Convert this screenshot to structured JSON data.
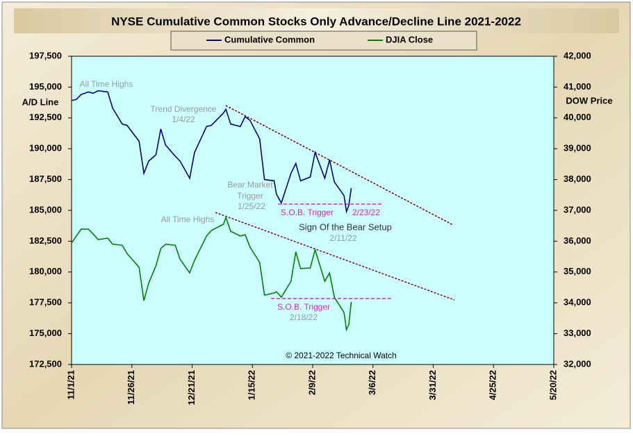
{
  "chart_data": {
    "type": "line",
    "title": "NYSE Cumulative  Common Stocks Only Advance/Decline  Line 2021-2022",
    "y_label": "A/D Line",
    "y2_label": "DOW Price",
    "copyright": "© 2021-2022  Technical Watch",
    "x": [
      "11/1/21",
      "11/3/21",
      "11/5/21",
      "11/8/21",
      "11/10/21",
      "11/12/21",
      "11/16/21",
      "11/18/21",
      "11/22/21",
      "11/24/21",
      "11/29/21",
      "12/1/21",
      "12/3/21",
      "12/6/21",
      "12/8/21",
      "12/10/21",
      "12/14/21",
      "12/16/21",
      "12/20/21",
      "12/22/21",
      "12/27/21",
      "12/29/21",
      "1/3/22",
      "1/4/22",
      "1/6/22",
      "1/10/22",
      "1/12/22",
      "1/14/22",
      "1/18/22",
      "1/20/22",
      "1/24/22",
      "1/25/22",
      "1/27/22",
      "1/31/22",
      "2/2/22",
      "2/4/22",
      "2/8/22",
      "2/10/22",
      "2/14/22",
      "2/16/22",
      "2/18/22",
      "2/22/22",
      "2/23/22",
      "2/24/22",
      "2/25/22"
    ],
    "series": [
      {
        "name": "Cumulative Common",
        "color": "#000080",
        "axis": "y",
        "values": [
          193900,
          194000,
          194400,
          194600,
          194500,
          194700,
          194600,
          193300,
          192000,
          191900,
          190600,
          188000,
          189000,
          189500,
          191600,
          190300,
          189400,
          189000,
          187600,
          189700,
          191800,
          191900,
          192900,
          193200,
          192000,
          191800,
          192600,
          192300,
          190800,
          187500,
          187400,
          186300,
          185600,
          188000,
          188800,
          187400,
          187700,
          189700,
          187600,
          189100,
          187300,
          186200,
          184900,
          185400,
          186800
        ]
      },
      {
        "name": "DJIA Close",
        "color": "#008000",
        "axis": "y2",
        "values": [
          35940,
          36170,
          36390,
          36390,
          36230,
          36050,
          36100,
          35900,
          35870,
          35600,
          35150,
          34070,
          34640,
          35200,
          35760,
          35900,
          35870,
          35420,
          34970,
          35380,
          36170,
          36350,
          36550,
          36770,
          36320,
          36170,
          36210,
          35810,
          35310,
          34250,
          34320,
          34360,
          34180,
          34700,
          35650,
          35110,
          35130,
          35720,
          34700,
          34970,
          34180,
          33690,
          33130,
          33290,
          34030
        ]
      }
    ],
    "xlim": [
      "11/1/21",
      "5/20/22"
    ],
    "xticks": [
      "11/1/21",
      "11/26/21",
      "12/21/21",
      "1/15/22",
      "2/9/22",
      "3/6/22",
      "3/31/22",
      "4/25/22",
      "5/20/22"
    ],
    "ylim": [
      172500,
      197500
    ],
    "yticks": [
      {
        "value": 172500,
        "label": "172,500"
      },
      {
        "value": 175000,
        "label": "175,000"
      },
      {
        "value": 177500,
        "label": "177,500"
      },
      {
        "value": 180000,
        "label": "180,000"
      },
      {
        "value": 182500,
        "label": "182,500"
      },
      {
        "value": 185000,
        "label": "185,000"
      },
      {
        "value": 187500,
        "label": "187,500"
      },
      {
        "value": 190000,
        "label": "190,000"
      },
      {
        "value": 192500,
        "label": "192,500"
      },
      {
        "value": 195000,
        "label": "195,000"
      },
      {
        "value": 197500,
        "label": "197,500"
      }
    ],
    "y2lim": [
      32000,
      42000
    ],
    "y2ticks": [
      {
        "value": 32000,
        "label": "32,000"
      },
      {
        "value": 33000,
        "label": "33,000"
      },
      {
        "value": 34000,
        "label": "34,000"
      },
      {
        "value": 35000,
        "label": "35,000"
      },
      {
        "value": 36000,
        "label": "36,000"
      },
      {
        "value": 37000,
        "label": "37,000"
      },
      {
        "value": 38000,
        "label": "38,000"
      },
      {
        "value": 39000,
        "label": "39,000"
      },
      {
        "value": 40000,
        "label": "40,000"
      },
      {
        "value": 41000,
        "label": "41,000"
      },
      {
        "value": 42000,
        "label": "42,000"
      }
    ],
    "legend": "top",
    "annotations": [
      "All Time Highs",
      "Trend  Divergence",
      "1/4/22",
      "Bear Market",
      "Trigger",
      "1/25/22",
      "S.O.B. Trigger",
      "2/23/22",
      "Sign Of the Bear Setup",
      "2/11/22",
      "All Time Highs",
      "S.O.B. Trigger",
      "2/18/22"
    ]
  }
}
